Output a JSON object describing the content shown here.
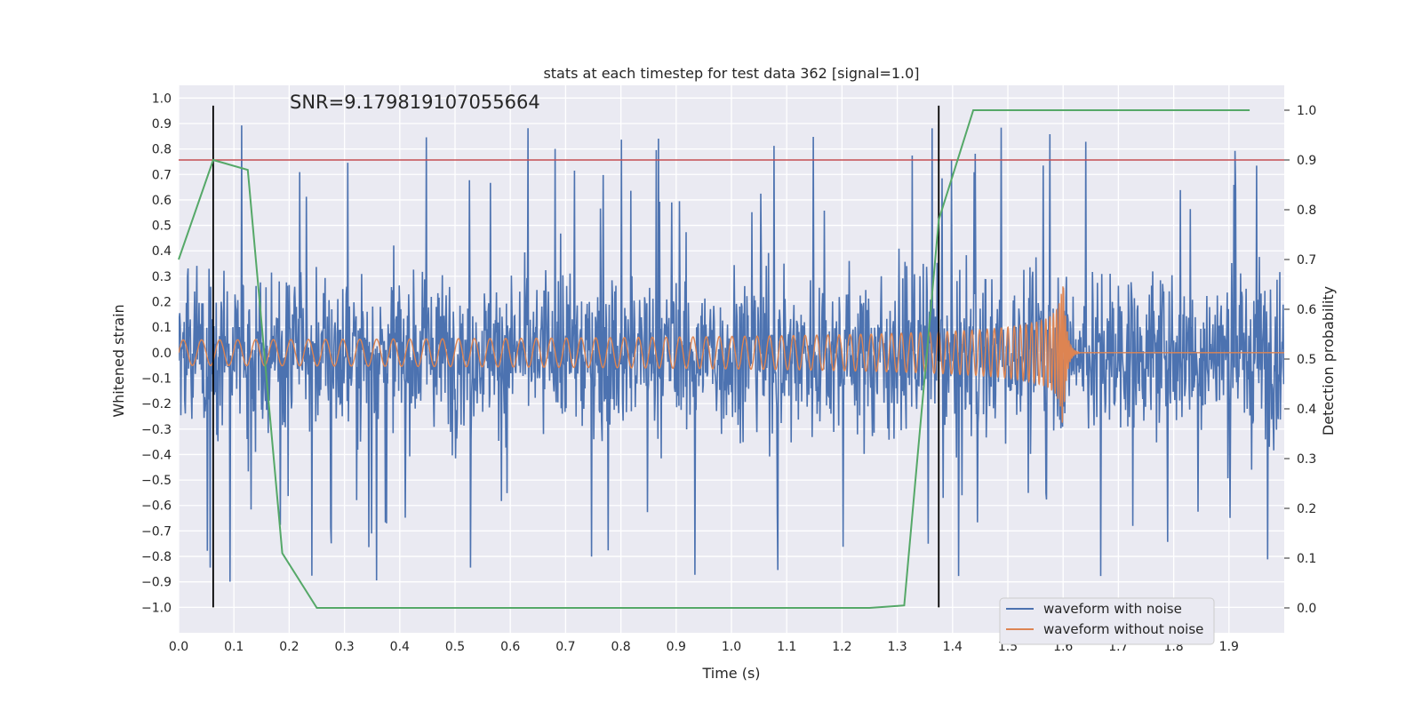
{
  "chart_data": {
    "type": "line",
    "title": "stats at each timestep for test data 362 [signal=1.0]",
    "xlabel": "Time (s)",
    "ylabel_left": "Whitened strain",
    "ylabel_right": "Detection probability",
    "annotation": "SNR=9.179819107055664",
    "xlim": [
      0.0,
      2.0
    ],
    "ylim_left": [
      -1.1,
      1.05
    ],
    "ylim_right": [
      -0.05,
      1.05
    ],
    "x_ticks": [
      "0.0",
      "0.1",
      "0.2",
      "0.3",
      "0.4",
      "0.5",
      "0.6",
      "0.7",
      "0.8",
      "0.9",
      "1.0",
      "1.1",
      "1.2",
      "1.3",
      "1.4",
      "1.5",
      "1.6",
      "1.7",
      "1.8",
      "1.9"
    ],
    "y_left_ticks": [
      "1.0",
      "0.9",
      "0.8",
      "0.7",
      "0.6",
      "0.5",
      "0.4",
      "0.3",
      "0.2",
      "0.1",
      "0.0",
      "−0.1",
      "−0.2",
      "−0.3",
      "−0.4",
      "−0.5",
      "−0.6",
      "−0.7",
      "−0.8",
      "−0.9",
      "−1.0"
    ],
    "y_right_ticks": [
      "1.0",
      "0.9",
      "0.8",
      "0.7",
      "0.6",
      "0.5",
      "0.4",
      "0.3",
      "0.2",
      "0.1",
      "0.0"
    ],
    "threshold": {
      "axis": "right",
      "value": 0.9,
      "color": "#c44e52"
    },
    "vertical_lines": [
      0.0625,
      1.375
    ],
    "vertical_range_left": [
      -1.0,
      0.97
    ],
    "series": [
      {
        "name": "waveform with noise",
        "color": "#4c72b0",
        "axis": "left",
        "note": "dense random noise, approx amplitude 0.3 with spikes up to 1.0"
      },
      {
        "name": "waveform without noise",
        "color": "#dd8452",
        "axis": "left",
        "note": "chirp, amplitude rising from 0.05 to 0.37, merger near 1.6 s, flat after"
      },
      {
        "name": "detection probability",
        "color": "#55a868",
        "axis": "right",
        "x": [
          0.0,
          0.0625,
          0.125,
          0.1875,
          0.25,
          0.5,
          0.75,
          1.0,
          1.25,
          1.3125,
          1.375,
          1.4375,
          1.9375
        ],
        "values": [
          0.7,
          0.9,
          0.88,
          0.11,
          0.0,
          0.0,
          0.0,
          0.0,
          0.0,
          0.005,
          0.78,
          1.0,
          1.0
        ]
      }
    ],
    "legend": {
      "position": "bottom-right",
      "entries": [
        "waveform with noise",
        "waveform without noise"
      ]
    }
  }
}
